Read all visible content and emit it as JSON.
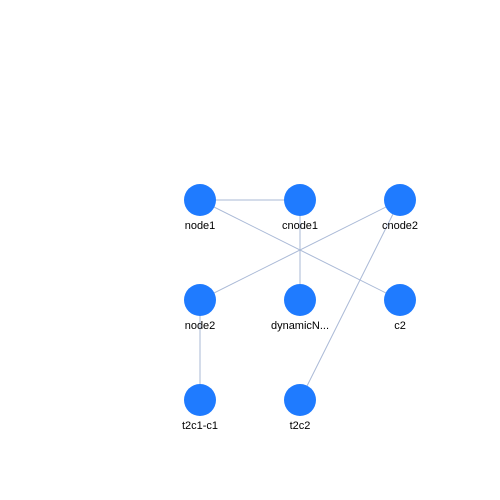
{
  "graph": {
    "node_color": "#1f7bff",
    "edge_color": "#a9b9d6",
    "nodes": [
      {
        "id": "node1",
        "label": "node1"
      },
      {
        "id": "cnode1",
        "label": "cnode1"
      },
      {
        "id": "cnode2",
        "label": "cnode2"
      },
      {
        "id": "node2",
        "label": "node2"
      },
      {
        "id": "dynamicN",
        "label": "dynamicN..."
      },
      {
        "id": "c2",
        "label": "c2"
      },
      {
        "id": "t2c1-c1",
        "label": "t2c1-c1"
      },
      {
        "id": "t2c2",
        "label": "t2c2"
      }
    ],
    "edges": [
      {
        "source": "node1",
        "target": "cnode1"
      },
      {
        "source": "node1",
        "target": "c2"
      },
      {
        "source": "cnode1",
        "target": "dynamicN"
      },
      {
        "source": "cnode2",
        "target": "node2"
      },
      {
        "source": "cnode2",
        "target": "t2c2"
      },
      {
        "source": "node2",
        "target": "t2c1-c1"
      }
    ]
  }
}
